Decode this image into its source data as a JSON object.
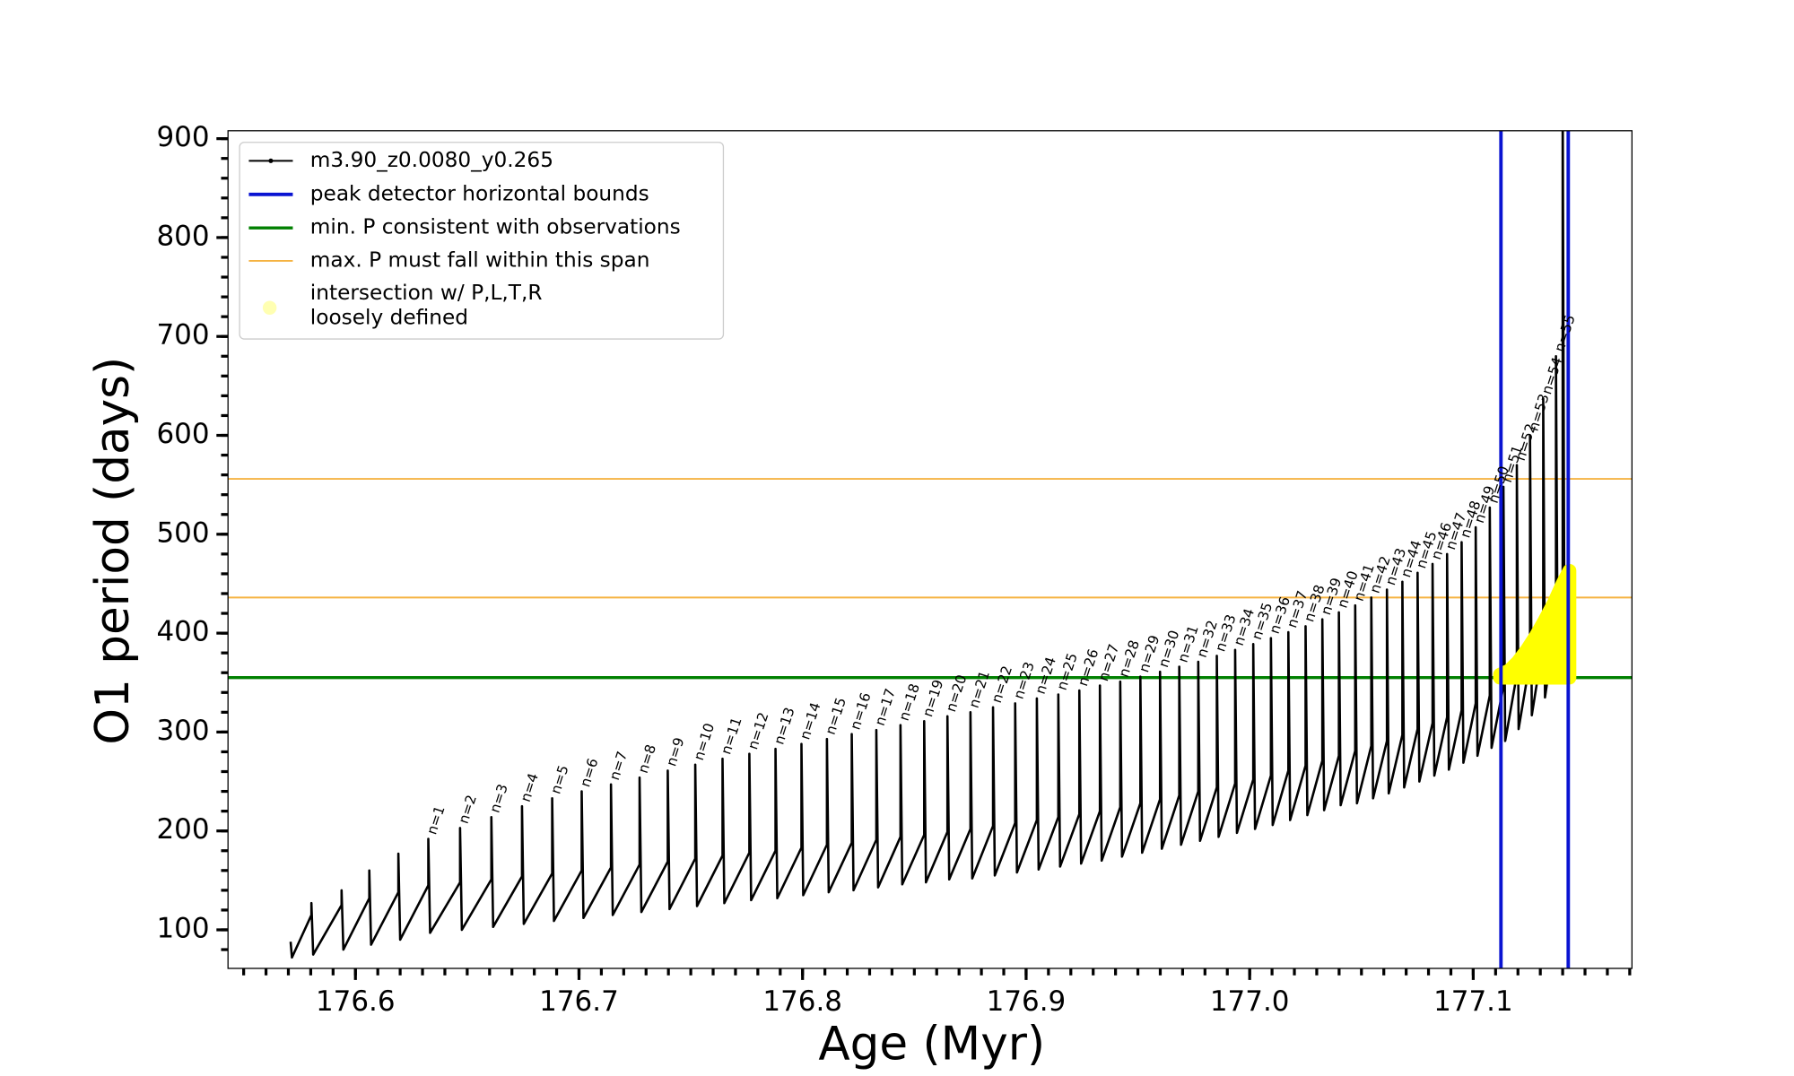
{
  "chart_data": {
    "type": "line",
    "xlabel": "Age (Myr)",
    "ylabel": "O1 period (days)",
    "xlim": [
      176.543,
      177.171
    ],
    "ylim": [
      61,
      908
    ],
    "xticks": [
      176.6,
      176.7,
      176.8,
      176.9,
      {
        "value": 177,
        "label": "177.0"
      },
      177.1
    ],
    "yticks": [
      100,
      200,
      300,
      400,
      500,
      600,
      700,
      800,
      900
    ],
    "x_minor_step": 0.01,
    "y_minor_step": 20,
    "legend": "upper left",
    "series": [
      {
        "name": "m3.90_z0.0080_y0.265",
        "color": "#000000",
        "x": [
          176.571,
          176.5716,
          176.5803,
          176.5803,
          176.5811,
          176.5938,
          176.5938,
          176.5946,
          176.6062,
          176.6062,
          176.607,
          176.6192,
          176.6192,
          176.62,
          176.6326,
          176.6326,
          176.6334,
          176.6468,
          176.6468,
          176.6476,
          176.6608,
          176.6608,
          176.6616,
          176.6745,
          176.6745,
          176.6753,
          176.688,
          176.688,
          176.6888,
          176.7012,
          176.7012,
          176.702,
          176.7143,
          176.7143,
          176.7151,
          176.7271,
          176.7271,
          176.7279,
          176.7397,
          176.7397,
          176.7405,
          176.752,
          176.752,
          176.7528,
          176.7642,
          176.7642,
          176.765,
          176.7762,
          176.7762,
          176.777,
          176.7879,
          176.7879,
          176.7887,
          176.7995,
          176.7995,
          176.8003,
          176.8109,
          176.8109,
          176.8117,
          176.822,
          176.822,
          176.8228,
          176.833,
          176.833,
          176.8338,
          176.8438,
          176.8438,
          176.8446,
          176.8544,
          176.8544,
          176.8552,
          176.8648,
          176.8648,
          176.8656,
          176.8751,
          176.8751,
          176.8759,
          176.8852,
          176.8852,
          176.886,
          176.8951,
          176.8951,
          176.8959,
          176.9048,
          176.9048,
          176.9056,
          176.9144,
          176.9144,
          176.9152,
          176.9238,
          176.9238,
          176.9246,
          176.933,
          176.933,
          176.9338,
          176.9421,
          176.9421,
          176.9429,
          176.9511,
          176.9511,
          176.9519,
          176.9599,
          176.9599,
          176.9607,
          176.9685,
          176.9685,
          176.9693,
          176.977,
          176.977,
          176.9778,
          176.9853,
          176.9853,
          176.9861,
          176.9935,
          176.9935,
          176.9943,
          177.0016,
          177.0016,
          177.0024,
          177.0095,
          177.0095,
          177.0103,
          177.0173,
          177.0173,
          177.0181,
          177.025,
          177.025,
          177.0258,
          177.0325,
          177.0325,
          177.0333,
          177.0399,
          177.0399,
          177.0407,
          177.0472,
          177.0472,
          177.048,
          177.0544,
          177.0544,
          177.0552,
          177.0614,
          177.0614,
          177.0622,
          177.0683,
          177.0683,
          177.0691,
          177.0751,
          177.0751,
          177.0759,
          177.0818,
          177.0818,
          177.0826,
          177.0883,
          177.0883,
          177.0891,
          177.0948,
          177.0948,
          177.0956,
          177.1011,
          177.1011,
          177.1019,
          177.1074,
          177.1074,
          177.1082,
          177.1135,
          177.1135,
          177.1143,
          177.1195,
          177.1195,
          177.1203,
          177.1254,
          177.1254,
          177.1262,
          177.1313,
          177.1313,
          177.1321,
          177.137,
          177.137,
          177.1378,
          177.14,
          177.14,
          177.1408,
          177.1425
        ],
        "values": [
          88,
          72,
          115,
          127,
          75,
          125,
          140,
          80,
          132,
          160,
          85,
          138,
          177,
          90,
          145,
          192,
          97,
          148,
          203,
          100,
          151,
          214,
          103,
          154,
          225,
          106,
          157,
          233,
          109,
          160,
          240,
          112,
          163,
          247,
          115,
          166,
          254,
          118,
          169,
          261,
          121,
          172,
          267,
          124,
          175,
          273,
          127,
          178,
          278,
          130,
          180,
          283,
          132,
          183,
          288,
          135,
          186,
          293,
          138,
          188,
          298,
          140,
          191,
          302,
          143,
          194,
          307,
          146,
          196,
          311,
          148,
          199,
          316,
          151,
          202,
          320,
          152,
          205,
          325,
          155,
          208,
          329,
          158,
          211,
          334,
          161,
          214,
          338,
          164,
          217,
          342,
          167,
          220,
          347,
          170,
          224,
          351,
          174,
          228,
          356,
          178,
          232,
          361,
          182,
          236,
          366,
          186,
          240,
          371,
          190,
          244,
          377,
          194,
          248,
          383,
          198,
          252,
          389,
          202,
          256,
          395,
          206,
          261,
          401,
          211,
          266,
          407,
          216,
          271,
          414,
          221,
          276,
          421,
          226,
          281,
          428,
          228,
          286,
          436,
          233,
          291,
          444,
          238,
          297,
          452,
          244,
          303,
          461,
          250,
          309,
          470,
          256,
          315,
          480,
          262,
          322,
          492,
          269,
          329,
          507,
          276,
          337,
          527,
          284,
          346,
          548,
          291,
          358,
          570,
          303,
          372,
          600,
          317,
          390,
          637,
          335,
          412,
          680,
          357,
          440,
          950,
          385,
          462
        ]
      }
    ],
    "vlines": {
      "name": "peak detector horizontal bounds",
      "color": "#0a14d2",
      "values": [
        177.1124,
        177.1425
      ]
    },
    "hlines": [
      {
        "name": "min. P consistent with observations",
        "color": "#008000",
        "values": [
          355
        ]
      },
      {
        "name": "max. P must fall within this span",
        "color": "#f5b342",
        "values": [
          436,
          556
        ]
      }
    ],
    "intersection": {
      "name": [
        "intersection w/ P,L,T,R",
        "loosely defined"
      ],
      "color": "#ffff00",
      "x": [
        177.112,
        177.116,
        177.12,
        177.124,
        177.128,
        177.132,
        177.136,
        177.14,
        177.143
      ],
      "upper": [
        358,
        362,
        371,
        383,
        397,
        413,
        430,
        450,
        463
      ],
      "lower": [
        355,
        355,
        355,
        355,
        355,
        355,
        355,
        355,
        355
      ]
    },
    "annotations": [
      {
        "text": "n=1",
        "x": 176.6326,
        "y": 192
      },
      {
        "text": "n=2",
        "x": 176.6468,
        "y": 203
      },
      {
        "text": "n=3",
        "x": 176.6608,
        "y": 214
      },
      {
        "text": "n=4",
        "x": 176.6745,
        "y": 225
      },
      {
        "text": "n=5",
        "x": 176.688,
        "y": 233
      },
      {
        "text": "n=6",
        "x": 176.7012,
        "y": 240
      },
      {
        "text": "n=7",
        "x": 176.7143,
        "y": 247
      },
      {
        "text": "n=8",
        "x": 176.7271,
        "y": 254
      },
      {
        "text": "n=9",
        "x": 176.7397,
        "y": 261
      },
      {
        "text": "n=10",
        "x": 176.752,
        "y": 267
      },
      {
        "text": "n=11",
        "x": 176.7642,
        "y": 273
      },
      {
        "text": "n=12",
        "x": 176.7762,
        "y": 278
      },
      {
        "text": "n=13",
        "x": 176.7879,
        "y": 283
      },
      {
        "text": "n=14",
        "x": 176.7995,
        "y": 288
      },
      {
        "text": "n=15",
        "x": 176.8109,
        "y": 293
      },
      {
        "text": "n=16",
        "x": 176.822,
        "y": 298
      },
      {
        "text": "n=17",
        "x": 176.833,
        "y": 302
      },
      {
        "text": "n=18",
        "x": 176.8438,
        "y": 307
      },
      {
        "text": "n=19",
        "x": 176.8544,
        "y": 311
      },
      {
        "text": "n=20",
        "x": 176.8648,
        "y": 316
      },
      {
        "text": "n=21",
        "x": 176.8751,
        "y": 320
      },
      {
        "text": "n=22",
        "x": 176.8852,
        "y": 325
      },
      {
        "text": "n=23",
        "x": 176.8951,
        "y": 329
      },
      {
        "text": "n=24",
        "x": 176.9048,
        "y": 334
      },
      {
        "text": "n=25",
        "x": 176.9144,
        "y": 338
      },
      {
        "text": "n=26",
        "x": 176.9238,
        "y": 342
      },
      {
        "text": "n=27",
        "x": 176.933,
        "y": 347
      },
      {
        "text": "n=28",
        "x": 176.9421,
        "y": 351
      },
      {
        "text": "n=29",
        "x": 176.9511,
        "y": 356
      },
      {
        "text": "n=30",
        "x": 176.9599,
        "y": 361
      },
      {
        "text": "n=31",
        "x": 176.9685,
        "y": 366
      },
      {
        "text": "n=32",
        "x": 176.977,
        "y": 371
      },
      {
        "text": "n=33",
        "x": 176.9853,
        "y": 377
      },
      {
        "text": "n=34",
        "x": 176.9935,
        "y": 383
      },
      {
        "text": "n=35",
        "x": 177.0016,
        "y": 389
      },
      {
        "text": "n=36",
        "x": 177.0095,
        "y": 395
      },
      {
        "text": "n=37",
        "x": 177.0173,
        "y": 401
      },
      {
        "text": "n=38",
        "x": 177.025,
        "y": 407
      },
      {
        "text": "n=39",
        "x": 177.0325,
        "y": 414
      },
      {
        "text": "n=40",
        "x": 177.0399,
        "y": 421
      },
      {
        "text": "n=41",
        "x": 177.0472,
        "y": 428
      },
      {
        "text": "n=42",
        "x": 177.0544,
        "y": 436
      },
      {
        "text": "n=43",
        "x": 177.0614,
        "y": 444
      },
      {
        "text": "n=44",
        "x": 177.0683,
        "y": 452
      },
      {
        "text": "n=45",
        "x": 177.0751,
        "y": 461
      },
      {
        "text": "n=46",
        "x": 177.0818,
        "y": 470
      },
      {
        "text": "n=47",
        "x": 177.0883,
        "y": 480
      },
      {
        "text": "n=48",
        "x": 177.0948,
        "y": 492
      },
      {
        "text": "n=49",
        "x": 177.1011,
        "y": 507
      },
      {
        "text": "n=50",
        "x": 177.1074,
        "y": 527
      },
      {
        "text": "n=51",
        "x": 177.1135,
        "y": 548
      },
      {
        "text": "n=52",
        "x": 177.1195,
        "y": 570
      },
      {
        "text": "n=53",
        "x": 177.1254,
        "y": 600
      },
      {
        "text": "n=54",
        "x": 177.1313,
        "y": 637
      },
      {
        "text": "n=55",
        "x": 177.137,
        "y": 680
      }
    ]
  }
}
